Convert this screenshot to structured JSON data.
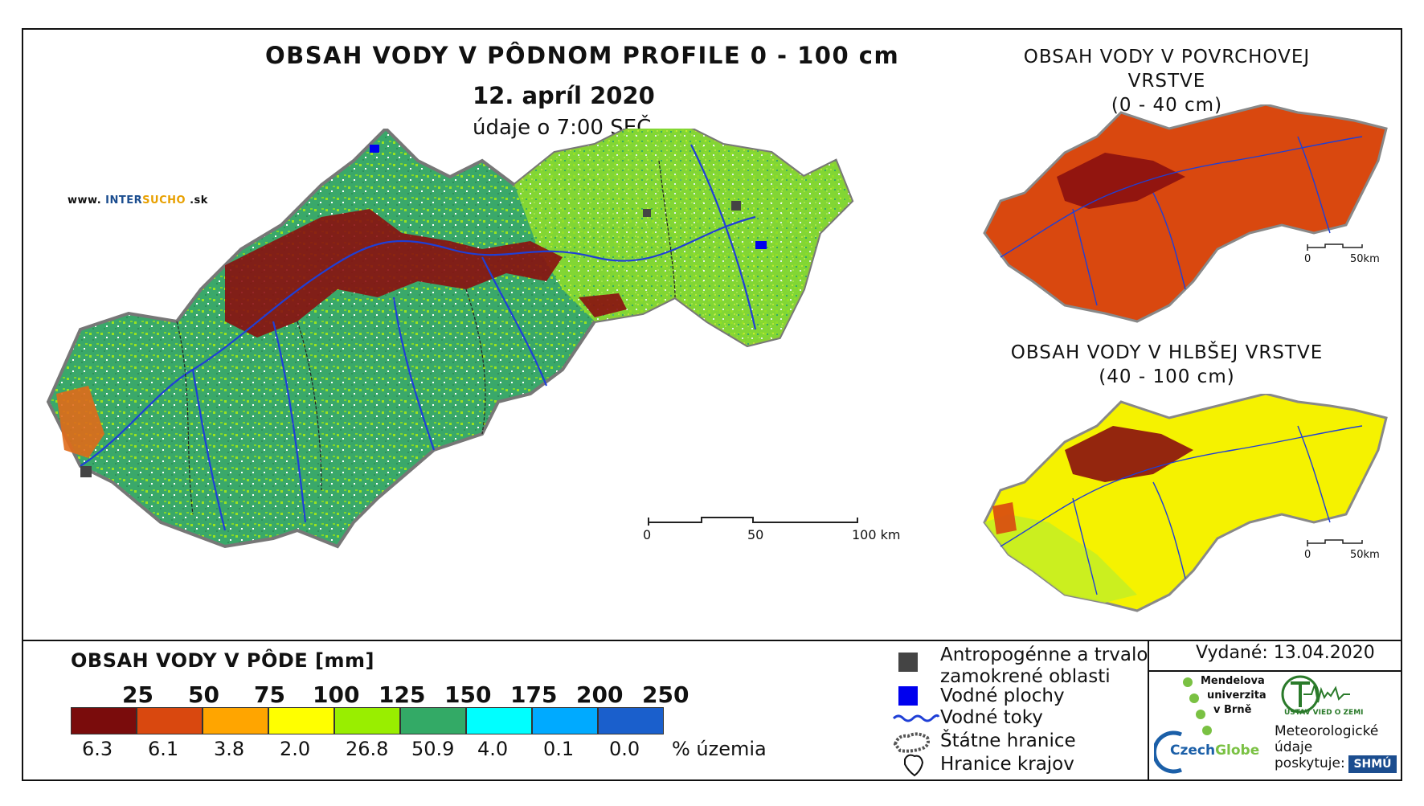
{
  "header": {
    "title": "OBSAH VODY V PÔDNOM PROFILE 0 - 100 cm",
    "date": "12. apríl 2020",
    "time": "údaje o 7:00 SEČ",
    "website_prefix": "www.",
    "website_brand_a": "INTER",
    "website_brand_b": "SUCHO",
    "website_suffix": ".sk"
  },
  "inset_surface": {
    "title_line1": "OBSAH VODY V POVRCHOVEJ VRSTVE",
    "title_line2": "(0 - 40 cm)",
    "scale_0": "0",
    "scale_50": "50km"
  },
  "inset_deep": {
    "title_line1": "OBSAH VODY V HLBŠEJ VRSTVE",
    "title_line2": "(40 - 100 cm)",
    "scale_0": "0",
    "scale_50": "50km"
  },
  "main_scale": {
    "label_0": "0",
    "label_50": "50",
    "label_100": "100 km"
  },
  "legend": {
    "title": "OBSAH VODY V PÔDE [mm]",
    "thresholds": [
      "25",
      "50",
      "75",
      "100",
      "125",
      "150",
      "175",
      "200",
      "250"
    ],
    "classes": [
      {
        "color": "#7a0c0c",
        "percent": "6.3"
      },
      {
        "color": "#d9480f",
        "percent": "6.1"
      },
      {
        "color": "#ffa500",
        "percent": "3.8"
      },
      {
        "color": "#ffff00",
        "percent": "2.0"
      },
      {
        "color": "#99ee00",
        "percent": "26.8"
      },
      {
        "color": "#33aa66",
        "percent": "50.9"
      },
      {
        "color": "#00ffff",
        "percent": "4.0"
      },
      {
        "color": "#00aaff",
        "percent": "0.1"
      },
      {
        "color": "#1a5fcc",
        "percent": "0.0"
      }
    ],
    "unit": "% územia"
  },
  "symbols": {
    "anthropogenic_line1": "Antropogénne a trvalo",
    "anthropogenic_line2": "zamokrené oblasti",
    "water_bodies": "Vodné plochy",
    "rivers": "Vodné toky",
    "state_border": "Štátne hranice",
    "region_border": "Hranice krajov"
  },
  "credits": {
    "issued": "Vydané: 13.04.2020",
    "mendel_line1": "Mendelova",
    "mendel_line2": "univerzita",
    "mendel_line3": "v Brně",
    "czechglobe_a": "Czech",
    "czechglobe_b": "Globe",
    "uvz": "ÚSTAV VIED O ZEMI",
    "meteo_line1": "Meteorologické",
    "meteo_line2": "údaje",
    "meteo_line3": "poskytuje:",
    "shmu": "SHMÚ"
  },
  "colors": {
    "river": "#1f3fd6",
    "anthropogenic": "#444444",
    "water": "#0000ee"
  }
}
